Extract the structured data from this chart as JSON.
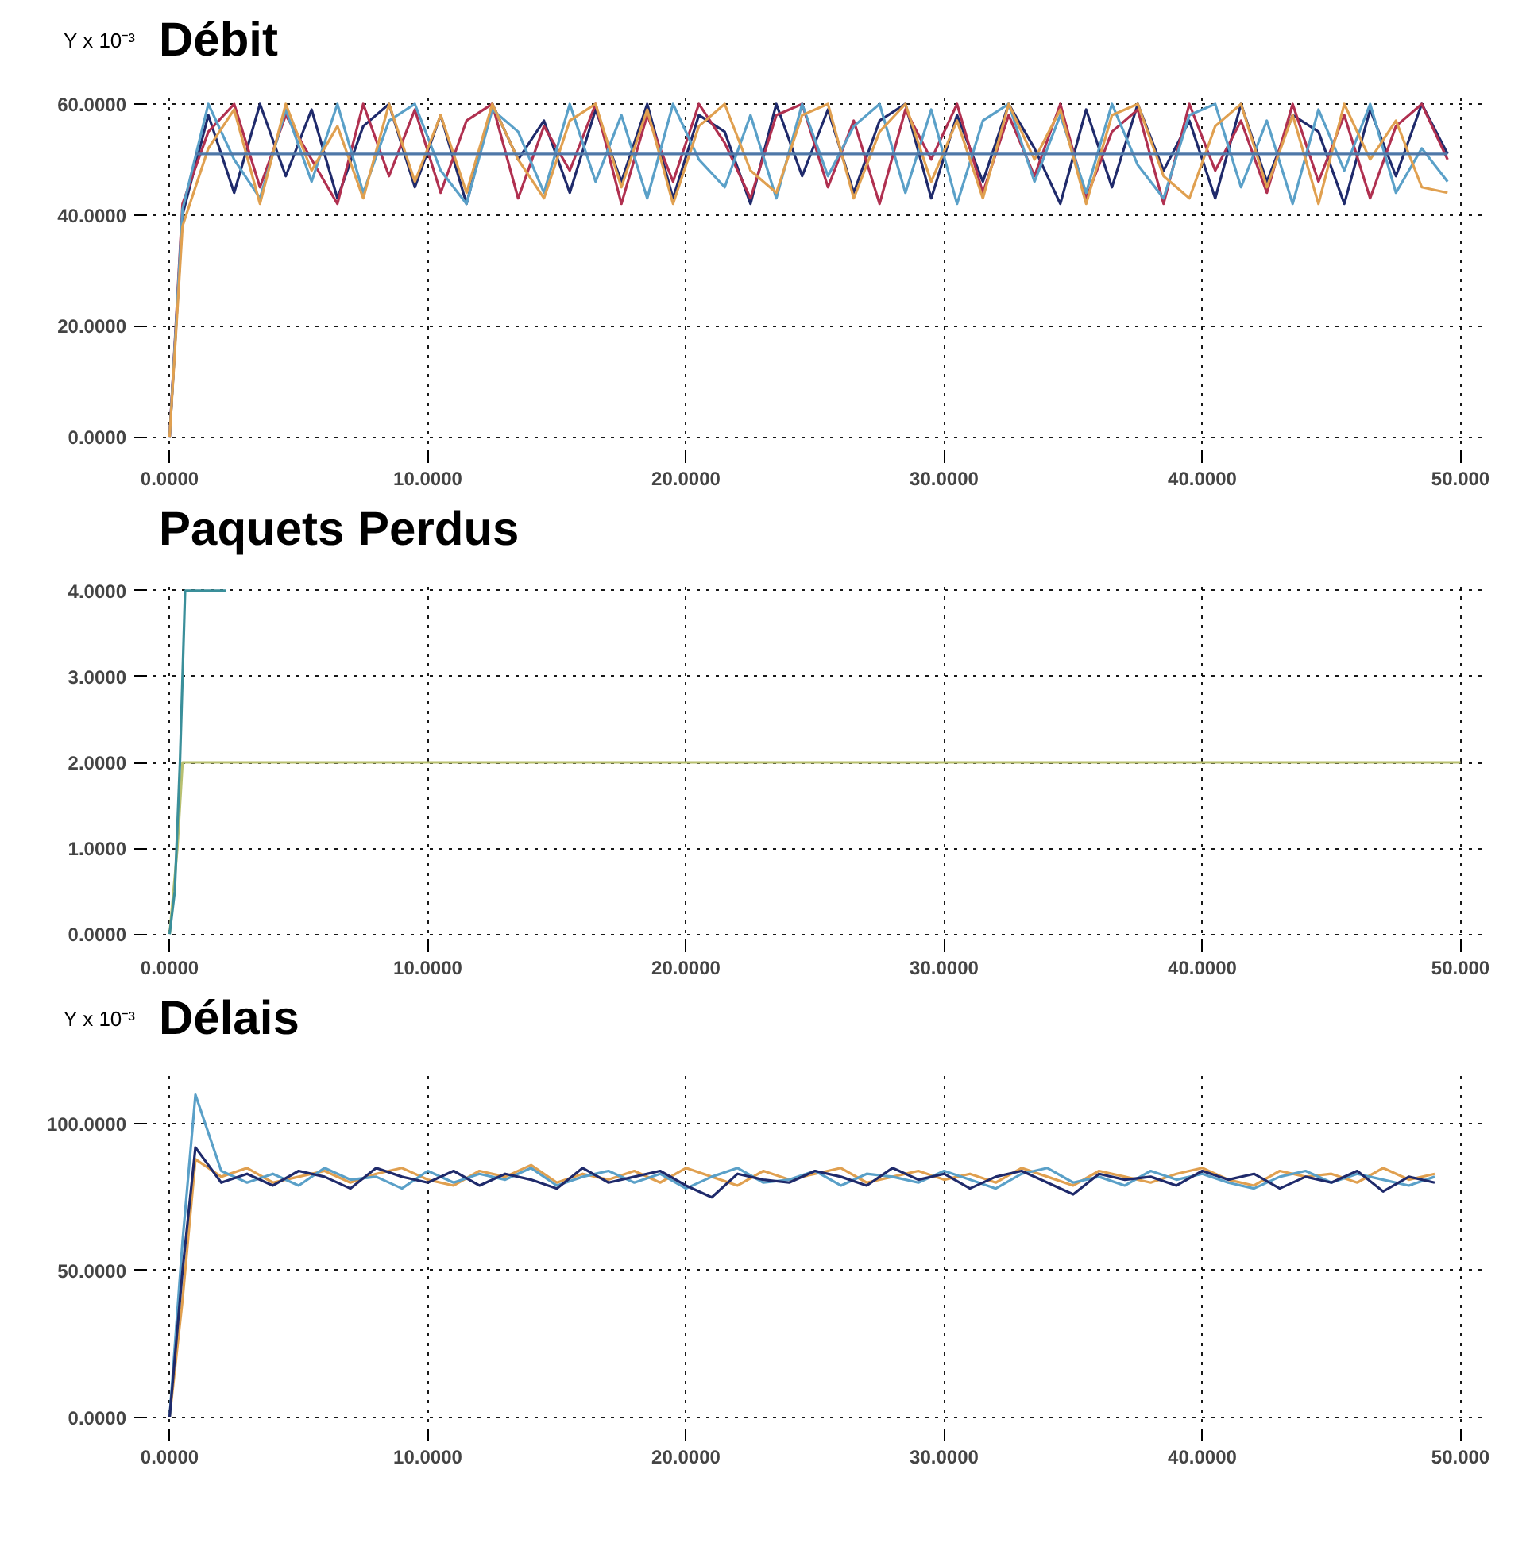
{
  "chart_data": [
    {
      "type": "line",
      "title": "Débit",
      "ylabel": "Y x 10⁻³",
      "grid": true,
      "line_style": "solid",
      "xlim": [
        -1,
        51
      ],
      "ylim": [
        -3,
        62
      ],
      "xticks": [
        {
          "value": 0,
          "label": "0.0000"
        },
        {
          "value": 10,
          "label": "10.0000"
        },
        {
          "value": 20,
          "label": "20.0000"
        },
        {
          "value": 30,
          "label": "30.0000"
        },
        {
          "value": 40,
          "label": "40.0000"
        },
        {
          "value": 50,
          "label": "50.000"
        }
      ],
      "yticks": [
        {
          "value": 0,
          "label": "0.0000"
        },
        {
          "value": 20,
          "label": "20.0000"
        },
        {
          "value": 40,
          "label": "40.0000"
        },
        {
          "value": 60,
          "label": "60.0000"
        }
      ],
      "x": [
        0,
        0.5,
        1.5,
        2.5,
        3.5,
        4.5,
        5.5,
        6.5,
        7.5,
        8.5,
        9.5,
        10.5,
        11.5,
        12.5,
        13.5,
        14.5,
        15.5,
        16.5,
        17.5,
        18.5,
        19.5,
        20.5,
        21.5,
        22.5,
        23.5,
        24.5,
        25.5,
        26.5,
        27.5,
        28.5,
        29.5,
        30.5,
        31.5,
        32.5,
        33.5,
        34.5,
        35.5,
        36.5,
        37.5,
        38.5,
        39.5,
        40.5,
        41.5,
        42.5,
        43.5,
        44.5,
        45.5,
        46.5,
        47.5,
        48.5,
        49.5
      ],
      "series": [
        {
          "color": "#1f2a6b",
          "values": [
            0,
            40,
            58,
            44,
            60,
            47,
            59,
            43,
            56,
            60,
            45,
            58,
            42,
            60,
            50,
            57,
            44,
            59,
            46,
            60,
            43,
            58,
            55,
            42,
            60,
            47,
            59,
            44,
            57,
            60,
            43,
            58,
            46,
            60,
            52,
            42,
            59,
            45,
            60,
            48,
            57,
            43,
            60,
            46,
            58,
            55,
            42,
            59,
            47,
            60,
            51
          ]
        },
        {
          "color": "#b03050",
          "values": [
            0,
            42,
            55,
            60,
            45,
            58,
            50,
            42,
            60,
            47,
            59,
            44,
            57,
            60,
            43,
            56,
            48,
            60,
            42,
            58,
            46,
            60,
            53,
            43,
            58,
            60,
            45,
            57,
            42,
            59,
            50,
            60,
            44,
            58,
            47,
            60,
            43,
            55,
            59,
            42,
            60,
            48,
            57,
            44,
            60,
            46,
            58,
            43,
            56,
            60,
            50
          ]
        },
        {
          "color": "#5aa0c8",
          "values": [
            0,
            41,
            60,
            50,
            43,
            59,
            46,
            60,
            44,
            57,
            60,
            48,
            42,
            59,
            55,
            44,
            60,
            46,
            58,
            43,
            60,
            50,
            45,
            58,
            43,
            60,
            47,
            56,
            60,
            44,
            59,
            42,
            57,
            60,
            46,
            58,
            44,
            60,
            49,
            43,
            58,
            60,
            45,
            57,
            42,
            59,
            48,
            60,
            44,
            52,
            46
          ]
        },
        {
          "color": "#e0a050",
          "values": [
            0,
            38,
            52,
            59,
            42,
            60,
            48,
            56,
            43,
            60,
            46,
            58,
            44,
            60,
            50,
            43,
            57,
            60,
            45,
            59,
            42,
            56,
            60,
            48,
            44,
            58,
            60,
            43,
            55,
            60,
            46,
            57,
            43,
            60,
            50,
            59,
            42,
            58,
            60,
            47,
            43,
            56,
            60,
            45,
            58,
            42,
            60,
            50,
            57,
            45,
            44
          ]
        },
        {
          "color": "#4f78a8",
          "x": [
            1,
            49.5
          ],
          "values": [
            51,
            51
          ]
        }
      ]
    },
    {
      "type": "line",
      "title": "Paquets Perdus",
      "grid": true,
      "line_style": "solid",
      "xlim": [
        -1,
        51
      ],
      "ylim": [
        -0.1,
        4.1
      ],
      "xticks": [
        {
          "value": 0,
          "label": "0.0000"
        },
        {
          "value": 10,
          "label": "10.0000"
        },
        {
          "value": 20,
          "label": "20.0000"
        },
        {
          "value": 30,
          "label": "30.0000"
        },
        {
          "value": 40,
          "label": "40.0000"
        },
        {
          "value": 50,
          "label": "50.000"
        }
      ],
      "yticks": [
        {
          "value": 0,
          "label": "0.0000"
        },
        {
          "value": 1,
          "label": "1.0000"
        },
        {
          "value": 2,
          "label": "2.0000"
        },
        {
          "value": 3,
          "label": "3.0000"
        },
        {
          "value": 4,
          "label": "4.0000"
        }
      ],
      "series": [
        {
          "color": "#b8c070",
          "x": [
            0,
            0.3,
            0.5,
            50
          ],
          "values": [
            0,
            1,
            2,
            2
          ]
        },
        {
          "color": "#3a8f9a",
          "x": [
            0,
            0.2,
            0.4,
            0.6,
            2.2
          ],
          "values": [
            0,
            0.5,
            2,
            4,
            4
          ]
        }
      ]
    },
    {
      "type": "line",
      "title": "Délais",
      "ylabel": "Y x 10⁻³",
      "grid": true,
      "line_style": "solid",
      "xlim": [
        -1,
        51
      ],
      "ylim": [
        -5,
        118
      ],
      "xticks": [
        {
          "value": 0,
          "label": "0.0000"
        },
        {
          "value": 10,
          "label": "10.0000"
        },
        {
          "value": 20,
          "label": "20.0000"
        },
        {
          "value": 30,
          "label": "30.0000"
        },
        {
          "value": 40,
          "label": "40.0000"
        },
        {
          "value": 50,
          "label": "50.000"
        }
      ],
      "yticks": [
        {
          "value": 0,
          "label": "0.0000"
        },
        {
          "value": 50,
          "label": "50.0000"
        },
        {
          "value": 100,
          "label": "100.0000"
        }
      ],
      "x": [
        0,
        0.5,
        1,
        2,
        3,
        4,
        5,
        6,
        7,
        8,
        9,
        10,
        11,
        12,
        13,
        14,
        15,
        16,
        17,
        18,
        19,
        20,
        21,
        22,
        23,
        24,
        25,
        26,
        27,
        28,
        29,
        30,
        31,
        32,
        33,
        34,
        35,
        36,
        37,
        38,
        39,
        40,
        41,
        42,
        43,
        44,
        45,
        46,
        47,
        48,
        49
      ],
      "series": [
        {
          "color": "#e0a050",
          "values": [
            0,
            40,
            88,
            82,
            85,
            80,
            82,
            84,
            80,
            83,
            85,
            81,
            79,
            84,
            82,
            86,
            80,
            83,
            81,
            84,
            80,
            85,
            82,
            79,
            84,
            81,
            83,
            85,
            80,
            82,
            84,
            81,
            83,
            80,
            85,
            82,
            79,
            84,
            82,
            80,
            83,
            85,
            81,
            79,
            84,
            82,
            83,
            80,
            85,
            81,
            83
          ]
        },
        {
          "color": "#5aa0c8",
          "values": [
            0,
            60,
            110,
            84,
            80,
            83,
            79,
            85,
            81,
            82,
            78,
            84,
            80,
            83,
            81,
            85,
            79,
            82,
            84,
            80,
            83,
            78,
            82,
            85,
            80,
            81,
            84,
            79,
            83,
            82,
            80,
            84,
            81,
            78,
            83,
            85,
            80,
            82,
            79,
            84,
            81,
            83,
            80,
            78,
            82,
            84,
            80,
            83,
            81,
            79,
            82
          ]
        },
        {
          "color": "#1f2a6b",
          "values": [
            0,
            50,
            92,
            80,
            83,
            79,
            84,
            82,
            78,
            85,
            82,
            80,
            84,
            79,
            83,
            81,
            78,
            85,
            80,
            82,
            84,
            79,
            75,
            83,
            81,
            80,
            84,
            82,
            79,
            85,
            81,
            83,
            78,
            82,
            84,
            80,
            76,
            83,
            81,
            82,
            79,
            84,
            81,
            83,
            78,
            82,
            80,
            84,
            77,
            82,
            80
          ]
        }
      ]
    }
  ]
}
